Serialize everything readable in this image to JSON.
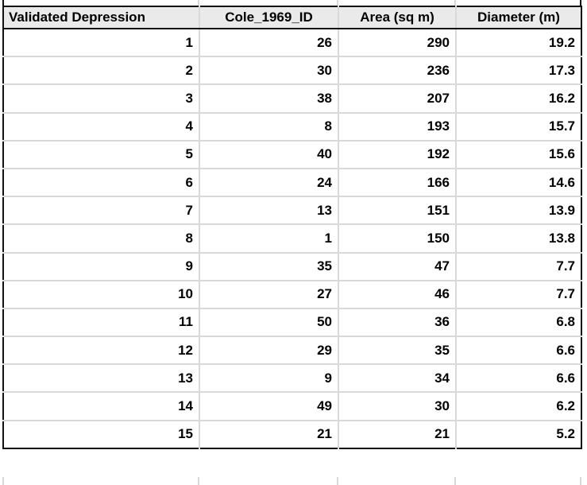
{
  "chart_data": {
    "type": "table",
    "columns": [
      "Validated Depression",
      "Cole_1969_ID",
      "Area (sq m)",
      "Diameter (m)"
    ],
    "rows": [
      [
        "1",
        "26",
        "290",
        "19.2"
      ],
      [
        "2",
        "30",
        "236",
        "17.3"
      ],
      [
        "3",
        "38",
        "207",
        "16.2"
      ],
      [
        "4",
        "8",
        "193",
        "15.7"
      ],
      [
        "5",
        "40",
        "192",
        "15.6"
      ],
      [
        "6",
        "24",
        "166",
        "14.6"
      ],
      [
        "7",
        "13",
        "151",
        "13.9"
      ],
      [
        "8",
        "1",
        "150",
        "13.8"
      ],
      [
        "9",
        "35",
        "47",
        "7.7"
      ],
      [
        "10",
        "27",
        "46",
        "7.7"
      ],
      [
        "11",
        "50",
        "36",
        "6.8"
      ],
      [
        "12",
        "29",
        "35",
        "6.6"
      ],
      [
        "13",
        "9",
        "34",
        "6.6"
      ],
      [
        "14",
        "49",
        "30",
        "6.2"
      ],
      [
        "15",
        "21",
        "21",
        "5.2"
      ]
    ],
    "layout": {
      "header_row": true,
      "grid": true,
      "cropped_row_above": true,
      "cropped_row_below": true
    }
  },
  "colors": {
    "background": "#ffffff",
    "text": "#000000",
    "frame": "#111111",
    "grid_line": "#d9d9d9",
    "header_bg": "#eaeaea"
  }
}
